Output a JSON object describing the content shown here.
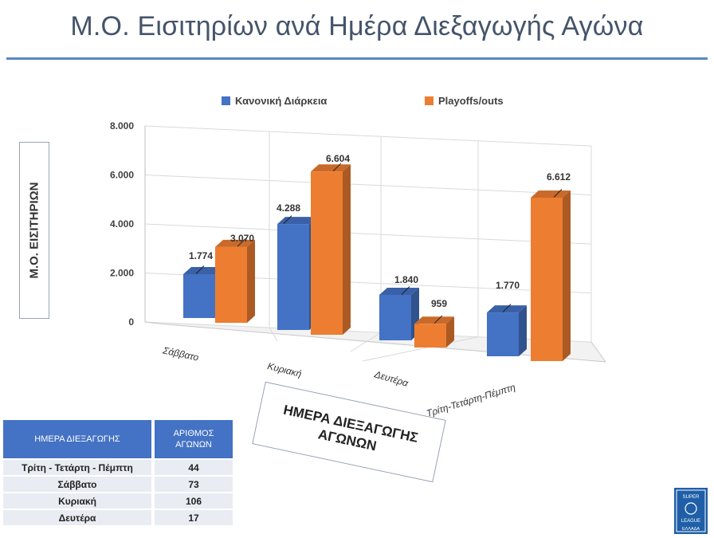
{
  "page": {
    "title": "Μ.Ο. Εισιτηρίων ανά Ημέρα Διεξαγωγής Αγώνα"
  },
  "chart_data": {
    "type": "bar",
    "categories": [
      "Σάββατο",
      "Κυριακή",
      "Δευτέρα",
      "Τρίτη-Τετάρτη-Πέμπτη"
    ],
    "series": [
      {
        "name": "Κανονική Διάρκεια",
        "values": [
          1774,
          4288,
          1840,
          1770
        ],
        "labels": [
          "1.774",
          "4.288",
          "1.840",
          "1.770"
        ],
        "color": "#4472c4"
      },
      {
        "name": "Playoffs/outs",
        "values": [
          3070,
          6604,
          959,
          6612
        ],
        "labels": [
          "3.070",
          "6.604",
          "959",
          "6.612"
        ],
        "color": "#ed7d31"
      }
    ],
    "ylabel": "Μ.Ο. ΕΙΣΙΤΗΡΙΩΝ",
    "xlabel_line1": "ΗΜΕΡΑ ΔΙΕΞΑΓΩΓΗΣ",
    "xlabel_line2": "ΑΓΩΝΩΝ",
    "ylim": [
      0,
      8000
    ],
    "yticks": [
      0,
      2000,
      4000,
      6000,
      8000
    ],
    "ytick_labels": [
      "0",
      "2.000",
      "4.000",
      "6.000",
      "8.000"
    ],
    "legend_position": "top",
    "grid": true
  },
  "table": {
    "headers": [
      "ΗΜΕΡΑ ΔΙΕΞΑΓΩΓΗΣ",
      "ΑΡΙΘΜΟΣ ΑΓΩΝΩΝ"
    ],
    "rows": [
      [
        "Τρίτη - Τετάρτη  - Πέμπτη",
        "44"
      ],
      [
        "Σάββατο",
        "73"
      ],
      [
        "Κυριακή",
        "106"
      ],
      [
        "Δευτέρα",
        "17"
      ]
    ]
  },
  "logo": {
    "text": [
      "SUPER",
      "LEAGUE",
      "ΕΛΛΑΔΑ"
    ],
    "color": "#1f5fa8"
  }
}
